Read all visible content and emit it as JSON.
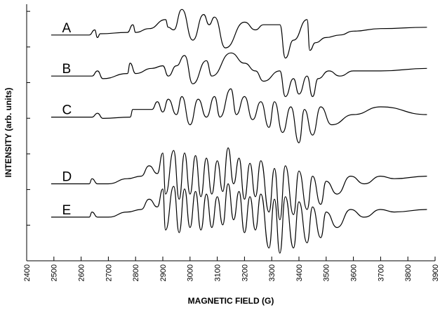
{
  "chart_data": {
    "type": "line",
    "xlabel": "MAGNETIC FIELD (G)",
    "ylabel": "INTENSITY (arb. units)",
    "xlim": [
      2400,
      3900
    ],
    "x_ticks": [
      2400,
      2500,
      2600,
      2700,
      2800,
      2900,
      3000,
      3100,
      3200,
      3300,
      3400,
      3500,
      3600,
      3700,
      3800,
      3900
    ],
    "y_ticks_labeled": false,
    "grid": false,
    "legend": "none",
    "series": [
      {
        "name": "A",
        "baseline": 0.88,
        "x": [
          2490,
          2630,
          2650,
          2660,
          2670,
          2770,
          2790,
          2800,
          2850,
          2910,
          2920,
          2940,
          2970,
          3010,
          3050,
          3070,
          3090,
          3130,
          3200,
          3240,
          3270,
          3330,
          3350,
          3380,
          3430,
          3440,
          3460,
          3500,
          3550,
          3600,
          3700,
          3870
        ],
        "y": [
          0.88,
          0.88,
          0.9,
          0.87,
          0.885,
          0.89,
          0.92,
          0.89,
          0.905,
          0.94,
          0.91,
          0.9,
          0.98,
          0.86,
          0.96,
          0.92,
          0.95,
          0.83,
          0.93,
          0.9,
          0.92,
          0.92,
          0.79,
          0.86,
          0.94,
          0.82,
          0.85,
          0.87,
          0.88,
          0.895,
          0.905,
          0.91
        ]
      },
      {
        "name": "B",
        "baseline": 0.72,
        "x": [
          2490,
          2640,
          2660,
          2680,
          2770,
          2780,
          2800,
          2860,
          2900,
          2920,
          2950,
          2980,
          3010,
          3060,
          3080,
          3150,
          3200,
          3240,
          3270,
          3330,
          3350,
          3380,
          3400,
          3430,
          3450,
          3470,
          3510,
          3550,
          3600,
          3700,
          3870
        ],
        "y": [
          0.72,
          0.72,
          0.74,
          0.71,
          0.73,
          0.77,
          0.73,
          0.75,
          0.76,
          0.72,
          0.76,
          0.8,
          0.69,
          0.78,
          0.72,
          0.81,
          0.77,
          0.74,
          0.7,
          0.74,
          0.64,
          0.71,
          0.65,
          0.72,
          0.64,
          0.71,
          0.74,
          0.72,
          0.74,
          0.74,
          0.75
        ]
      },
      {
        "name": "C",
        "baseline": 0.56,
        "x": [
          2490,
          2640,
          2660,
          2680,
          2780,
          2790,
          2860,
          2880,
          2900,
          2920,
          2950,
          2970,
          3000,
          3030,
          3060,
          3090,
          3110,
          3150,
          3170,
          3200,
          3230,
          3260,
          3290,
          3310,
          3340,
          3370,
          3400,
          3420,
          3450,
          3480,
          3520,
          3600,
          3700,
          3870
        ],
        "y": [
          0.56,
          0.56,
          0.575,
          0.555,
          0.56,
          0.59,
          0.59,
          0.62,
          0.58,
          0.63,
          0.57,
          0.64,
          0.53,
          0.63,
          0.56,
          0.64,
          0.56,
          0.67,
          0.57,
          0.64,
          0.55,
          0.62,
          0.52,
          0.62,
          0.5,
          0.6,
          0.46,
          0.59,
          0.49,
          0.6,
          0.53,
          0.57,
          0.6,
          0.57
        ]
      },
      {
        "name": "D",
        "baseline": 0.3,
        "x": [
          2490,
          2630,
          2640,
          2660,
          2700,
          2770,
          2820,
          2850,
          2880,
          2900,
          2910,
          2940,
          2960,
          2980,
          3000,
          3020,
          3040,
          3060,
          3080,
          3100,
          3120,
          3140,
          3160,
          3180,
          3200,
          3220,
          3240,
          3260,
          3290,
          3310,
          3330,
          3350,
          3380,
          3400,
          3430,
          3450,
          3480,
          3500,
          3540,
          3590,
          3640,
          3700,
          3750,
          3870
        ],
        "y": [
          0.3,
          0.3,
          0.32,
          0.3,
          0.3,
          0.32,
          0.33,
          0.37,
          0.34,
          0.42,
          0.26,
          0.43,
          0.24,
          0.42,
          0.26,
          0.41,
          0.25,
          0.4,
          0.26,
          0.39,
          0.27,
          0.44,
          0.3,
          0.4,
          0.24,
          0.38,
          0.25,
          0.39,
          0.19,
          0.36,
          0.16,
          0.37,
          0.18,
          0.35,
          0.2,
          0.33,
          0.22,
          0.31,
          0.26,
          0.33,
          0.3,
          0.33,
          0.32,
          0.33
        ]
      },
      {
        "name": "E",
        "baseline": 0.17,
        "x": [
          2490,
          2630,
          2640,
          2660,
          2700,
          2770,
          2820,
          2850,
          2880,
          2900,
          2910,
          2940,
          2960,
          2980,
          3000,
          3020,
          3040,
          3060,
          3080,
          3100,
          3120,
          3140,
          3160,
          3180,
          3200,
          3220,
          3240,
          3260,
          3290,
          3310,
          3330,
          3350,
          3380,
          3400,
          3430,
          3450,
          3480,
          3500,
          3540,
          3590,
          3640,
          3700,
          3750,
          3870
        ],
        "y": [
          0.17,
          0.17,
          0.19,
          0.17,
          0.17,
          0.19,
          0.2,
          0.24,
          0.21,
          0.28,
          0.12,
          0.29,
          0.11,
          0.28,
          0.13,
          0.27,
          0.12,
          0.26,
          0.13,
          0.25,
          0.14,
          0.3,
          0.16,
          0.27,
          0.11,
          0.25,
          0.12,
          0.26,
          0.05,
          0.24,
          0.03,
          0.25,
          0.05,
          0.23,
          0.07,
          0.21,
          0.09,
          0.19,
          0.13,
          0.2,
          0.17,
          0.2,
          0.19,
          0.2
        ]
      }
    ]
  }
}
